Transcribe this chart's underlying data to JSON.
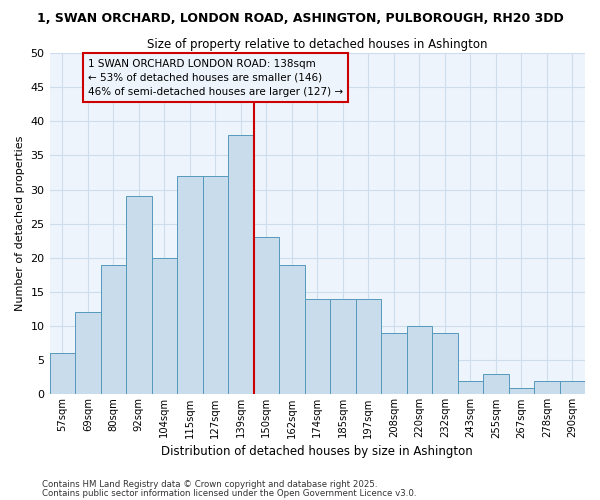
{
  "title1": "1, SWAN ORCHARD, LONDON ROAD, ASHINGTON, PULBOROUGH, RH20 3DD",
  "title2": "Size of property relative to detached houses in Ashington",
  "xlabel": "Distribution of detached houses by size in Ashington",
  "ylabel": "Number of detached properties",
  "categories": [
    "57sqm",
    "69sqm",
    "80sqm",
    "92sqm",
    "104sqm",
    "115sqm",
    "127sqm",
    "139sqm",
    "150sqm",
    "162sqm",
    "174sqm",
    "185sqm",
    "197sqm",
    "208sqm",
    "220sqm",
    "232sqm",
    "243sqm",
    "255sqm",
    "267sqm",
    "278sqm",
    "290sqm"
  ],
  "values": [
    6,
    12,
    19,
    29,
    20,
    32,
    32,
    38,
    23,
    19,
    14,
    14,
    14,
    9,
    10,
    9,
    2,
    3,
    1,
    2,
    2
  ],
  "bar_color": "#c8dcec",
  "bar_edge_color": "#5599bb",
  "vline_x_idx": 7,
  "vline_color": "#cc0000",
  "annotation_lines": [
    "1 SWAN ORCHARD LONDON ROAD: 138sqm",
    "← 53% of detached houses are smaller (146)",
    "46% of semi-detached houses are larger (127) →"
  ],
  "annotation_box_color": "#cc0000",
  "ylim": [
    0,
    50
  ],
  "yticks": [
    0,
    5,
    10,
    15,
    20,
    25,
    30,
    35,
    40,
    45,
    50
  ],
  "grid_color": "#ccddee",
  "bg_color": "#ffffff",
  "plot_bg_color": "#eef4fb",
  "footer1": "Contains HM Land Registry data © Crown copyright and database right 2025.",
  "footer2": "Contains public sector information licensed under the Open Government Licence v3.0."
}
